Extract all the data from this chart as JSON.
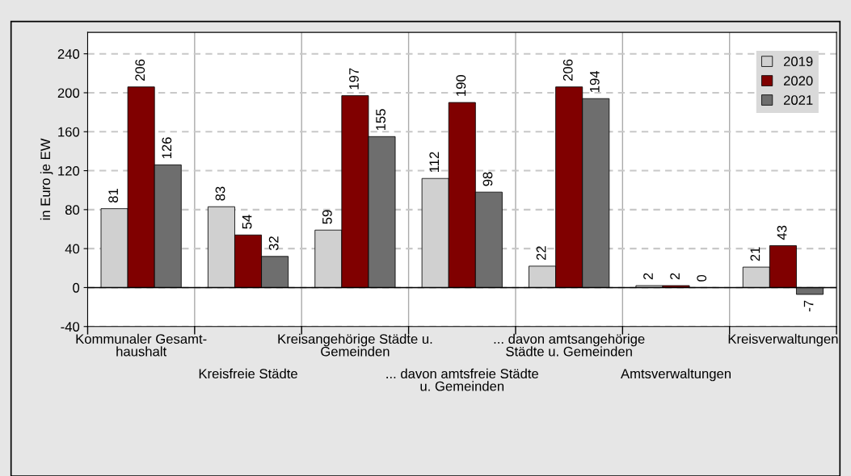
{
  "chart_data": {
    "type": "bar",
    "ylabel": "in Euro je EW",
    "categories": [
      "Kommunaler Gesamt-\nhaushalt",
      "Kreisfreie Städte",
      "Kreisangehörige Städte u.\nGemeinden",
      "... davon amtsfreie Städte\nu. Gemeinden",
      "... davon amtsangehörige\nStädte u. Gemeinden",
      "Amtsverwaltungen",
      "Kreisverwaltungen"
    ],
    "series": [
      {
        "name": "2019",
        "color": "#d0d0d0",
        "values": [
          81,
          83,
          59,
          112,
          22,
          2,
          21
        ]
      },
      {
        "name": "2020",
        "color": "#800000",
        "values": [
          206,
          54,
          197,
          190,
          206,
          2,
          43
        ]
      },
      {
        "name": "2021",
        "color": "#6e6e6e",
        "values": [
          126,
          32,
          155,
          98,
          194,
          0,
          -7
        ]
      }
    ],
    "ylim": [
      -40,
      262
    ],
    "yticks": [
      -40,
      0,
      40,
      80,
      120,
      160,
      200,
      240
    ],
    "grid": true,
    "legend": "top right",
    "data_labels": true
  }
}
